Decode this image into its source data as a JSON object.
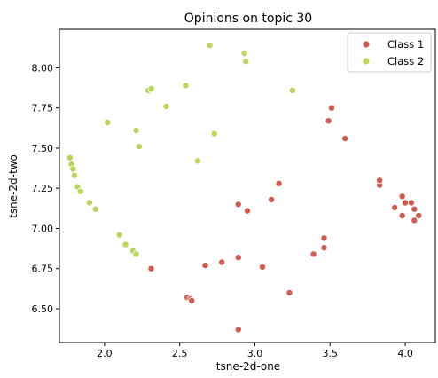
{
  "chart_data": {
    "type": "scatter",
    "title": "Opinions on topic 30",
    "xlabel": "tsne-2d-one",
    "ylabel": "tsne-2d-two",
    "xlim": [
      1.7,
      4.2
    ],
    "ylim": [
      6.29,
      8.24
    ],
    "xticks": [
      2.0,
      2.5,
      3.0,
      3.5,
      4.0
    ],
    "xtick_labels": [
      "2.0",
      "2.5",
      "3.0",
      "3.5",
      "4.0"
    ],
    "yticks": [
      6.5,
      6.75,
      7.0,
      7.25,
      7.5,
      7.75,
      8.0
    ],
    "ytick_labels": [
      "6.50",
      "6.75",
      "7.00",
      "7.25",
      "7.50",
      "7.75",
      "8.00"
    ],
    "grid": false,
    "legend_position": "top-right",
    "series": [
      {
        "name": "Class 1",
        "color": "#d05b4e",
        "points": [
          [
            2.31,
            6.75
          ],
          [
            2.55,
            6.57
          ],
          [
            2.57,
            6.56
          ],
          [
            2.58,
            6.55
          ],
          [
            2.67,
            6.77
          ],
          [
            2.78,
            6.79
          ],
          [
            2.89,
            6.82
          ],
          [
            2.89,
            7.15
          ],
          [
            2.95,
            7.11
          ],
          [
            3.05,
            6.76
          ],
          [
            3.11,
            7.18
          ],
          [
            3.16,
            7.28
          ],
          [
            2.89,
            6.37
          ],
          [
            3.23,
            6.6
          ],
          [
            3.39,
            6.84
          ],
          [
            3.46,
            6.94
          ],
          [
            3.46,
            6.88
          ],
          [
            3.49,
            7.67
          ],
          [
            3.51,
            7.75
          ],
          [
            3.6,
            7.56
          ],
          [
            3.83,
            7.27
          ],
          [
            3.83,
            7.3
          ],
          [
            3.93,
            7.13
          ],
          [
            3.98,
            7.2
          ],
          [
            3.98,
            7.08
          ],
          [
            4.0,
            7.16
          ],
          [
            4.04,
            7.16
          ],
          [
            4.06,
            7.12
          ],
          [
            4.06,
            7.05
          ],
          [
            4.09,
            7.08
          ]
        ]
      },
      {
        "name": "Class 2",
        "color": "#b7d65a",
        "points": [
          [
            1.77,
            7.44
          ],
          [
            1.78,
            7.4
          ],
          [
            1.79,
            7.37
          ],
          [
            1.8,
            7.33
          ],
          [
            1.82,
            7.26
          ],
          [
            1.84,
            7.23
          ],
          [
            1.9,
            7.16
          ],
          [
            1.94,
            7.12
          ],
          [
            2.02,
            7.66
          ],
          [
            2.1,
            6.96
          ],
          [
            2.14,
            6.9
          ],
          [
            2.19,
            6.86
          ],
          [
            2.21,
            6.84
          ],
          [
            2.21,
            7.61
          ],
          [
            2.23,
            7.51
          ],
          [
            2.29,
            7.86
          ],
          [
            2.31,
            7.87
          ],
          [
            2.41,
            7.76
          ],
          [
            2.54,
            7.89
          ],
          [
            2.62,
            7.42
          ],
          [
            2.7,
            8.14
          ],
          [
            2.73,
            7.59
          ],
          [
            2.93,
            8.09
          ],
          [
            2.94,
            8.04
          ],
          [
            3.25,
            7.86
          ]
        ]
      }
    ]
  }
}
